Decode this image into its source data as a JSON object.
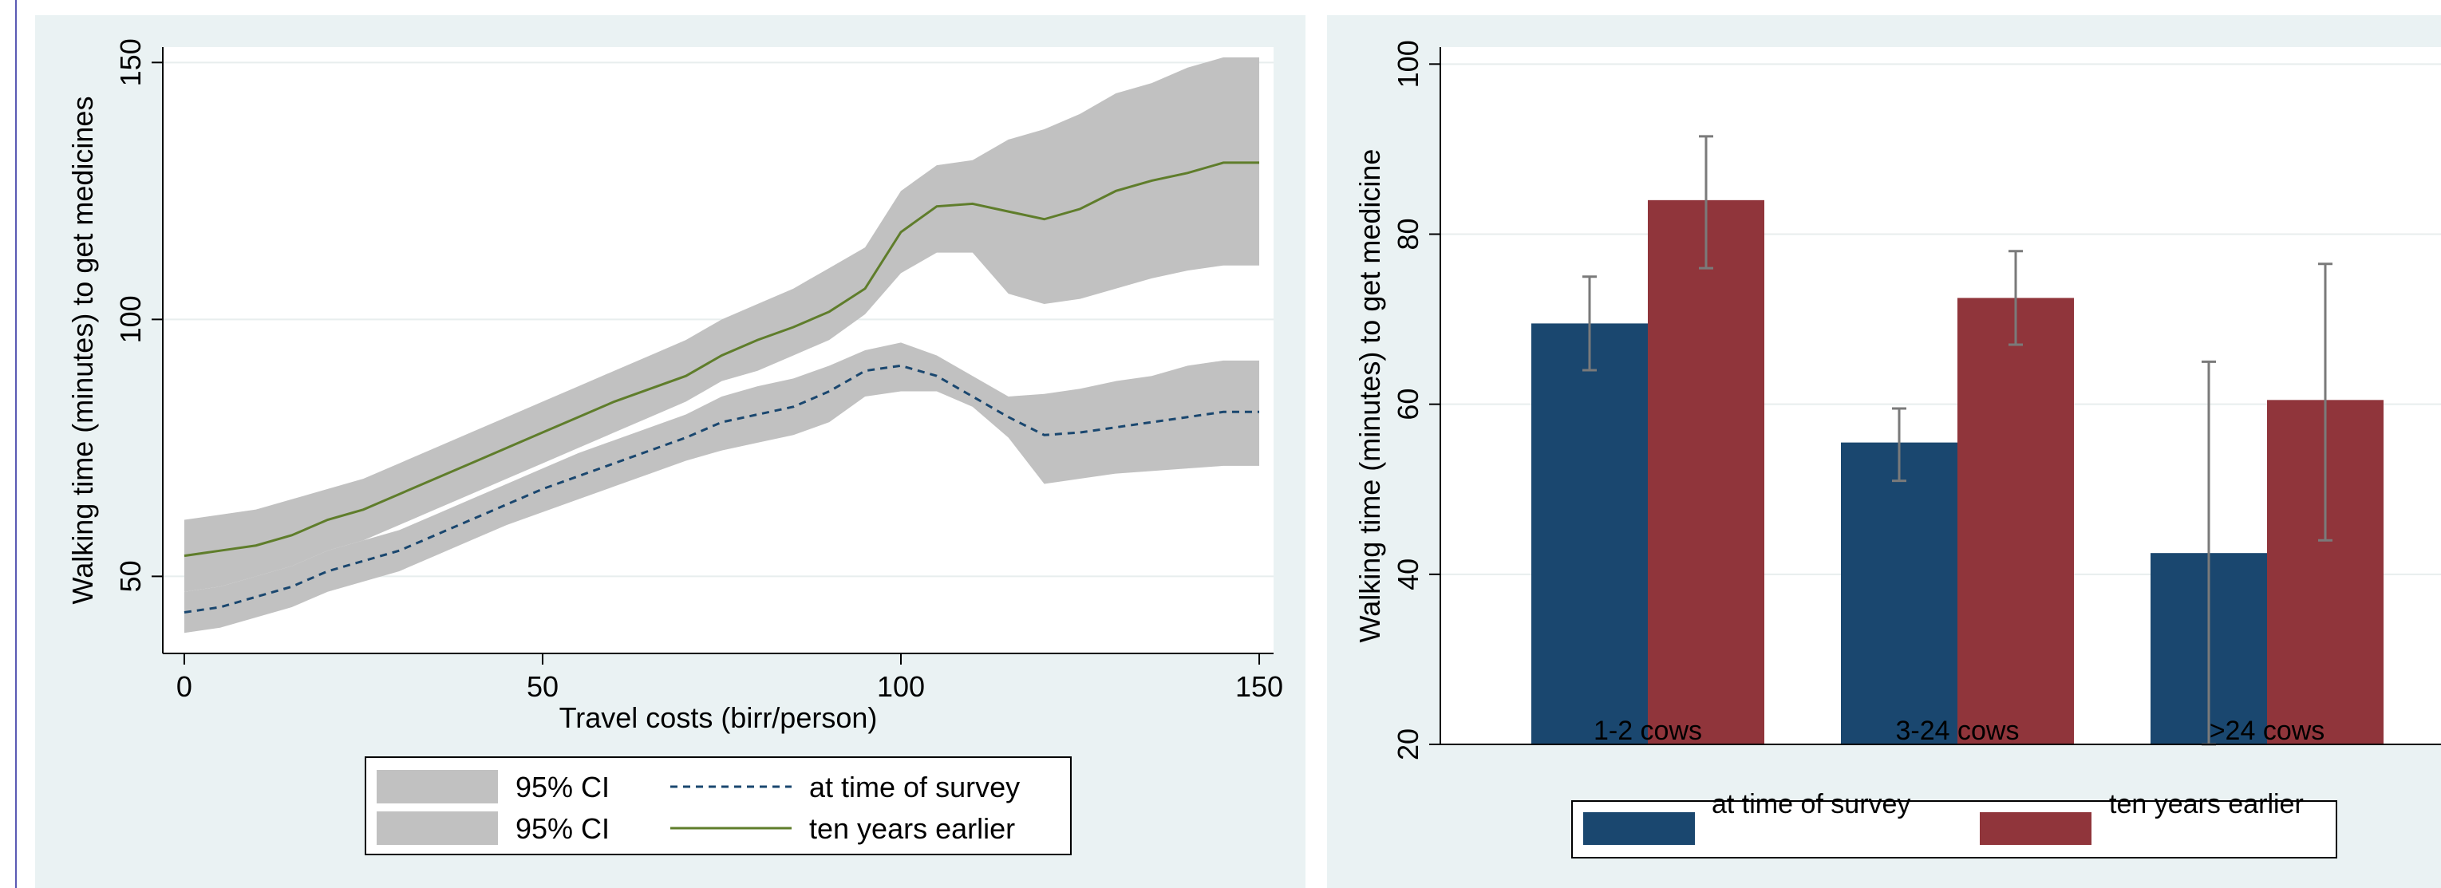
{
  "chart_data": [
    {
      "type": "line",
      "xlabel": "Travel costs (birr/person)",
      "ylabel": "Walking time (minutes) to get medicines",
      "xlim": [
        -3,
        152
      ],
      "ylim": [
        35,
        153
      ],
      "xticks": [
        0,
        50,
        100,
        150
      ],
      "yticks": [
        50,
        100,
        150
      ],
      "grid": true,
      "legend_placement": "bottom",
      "series": [
        {
          "name": "at time of survey",
          "style": "dashed",
          "color": "#1a476f",
          "x": [
            0,
            5,
            10,
            15,
            20,
            25,
            30,
            35,
            40,
            45,
            50,
            55,
            60,
            65,
            70,
            75,
            80,
            85,
            90,
            95,
            100,
            105,
            110,
            115,
            120,
            125,
            130,
            135,
            140,
            145,
            150
          ],
          "y": [
            43,
            44,
            46,
            48,
            51,
            53,
            55,
            58,
            61,
            64,
            67,
            69.5,
            72,
            74.5,
            77,
            80,
            81.5,
            83,
            86,
            90,
            91,
            89,
            85,
            81,
            77.5,
            78,
            79,
            80,
            81,
            82,
            82
          ],
          "ci_label": "95% CI",
          "ci_lower": [
            39,
            40,
            42,
            44,
            47,
            49,
            51,
            54,
            57,
            60,
            62.5,
            65,
            67.5,
            70,
            72.5,
            74.5,
            76,
            77.5,
            80,
            85,
            86,
            86,
            83,
            77,
            68,
            69,
            70,
            70.5,
            71,
            71.5,
            71.5
          ],
          "ci_upper": [
            47,
            48,
            50,
            52,
            55,
            57,
            59,
            62,
            65,
            68,
            71,
            74,
            76.5,
            79,
            81.5,
            85,
            87,
            88.5,
            91,
            94,
            95.5,
            93,
            89,
            85,
            85.5,
            86.5,
            88,
            89,
            91,
            92,
            92
          ]
        },
        {
          "name": "ten years earlier",
          "style": "solid",
          "color": "#5f7d2b",
          "x": [
            0,
            5,
            10,
            15,
            20,
            25,
            30,
            35,
            40,
            45,
            50,
            55,
            60,
            65,
            70,
            75,
            80,
            85,
            90,
            95,
            100,
            105,
            110,
            115,
            120,
            125,
            130,
            135,
            140,
            145,
            150
          ],
          "y": [
            54,
            55,
            56,
            58,
            61,
            63,
            66,
            69,
            72,
            75,
            78,
            81,
            84,
            86.5,
            89,
            93,
            96,
            98.5,
            101.5,
            106,
            117,
            122,
            122.5,
            121,
            119.5,
            121.5,
            125,
            127,
            128.5,
            130.5,
            130.5
          ],
          "ci_label": "95% CI",
          "ci_lower": [
            47,
            48,
            50,
            52,
            55,
            57,
            60,
            63,
            66,
            69,
            72,
            75,
            78,
            81,
            84,
            88,
            90,
            93,
            96,
            101,
            109,
            113,
            113,
            105,
            103,
            104,
            106,
            108,
            109.5,
            110.5,
            110.5
          ],
          "ci_upper": [
            61,
            62,
            63,
            65,
            67,
            69,
            72,
            75,
            78,
            81,
            84,
            87,
            90,
            93,
            96,
            100,
            103,
            106,
            110,
            114,
            125,
            130,
            131,
            135,
            137,
            140,
            144,
            146,
            149,
            151,
            151
          ]
        }
      ],
      "legend": [
        {
          "label": "95% CI",
          "kind": "band"
        },
        {
          "label": "at time of survey",
          "kind": "dashed"
        },
        {
          "label": "95% CI",
          "kind": "band"
        },
        {
          "label": "ten years earlier",
          "kind": "solid"
        }
      ]
    },
    {
      "type": "bar",
      "ylabel": "Walking time (minutes) to get medicine",
      "ylim": [
        20,
        102
      ],
      "yticks": [
        20,
        40,
        60,
        80,
        100
      ],
      "grid": true,
      "legend_placement": "bottom",
      "categories": [
        "1-2 cows",
        "3-24 cows",
        ">24 cows"
      ],
      "series": [
        {
          "name": "at time of survey",
          "color": "#1a476f",
          "values": [
            69.5,
            55.5,
            42.5
          ],
          "ci_lower": [
            64,
            51,
            20
          ],
          "ci_upper": [
            75,
            59.5,
            65
          ]
        },
        {
          "name": "ten years earlier",
          "color": "#90353b",
          "values": [
            84,
            72.5,
            60.5
          ],
          "ci_lower": [
            76,
            67,
            44
          ],
          "ci_upper": [
            91.5,
            78,
            76.5
          ]
        }
      ]
    }
  ]
}
